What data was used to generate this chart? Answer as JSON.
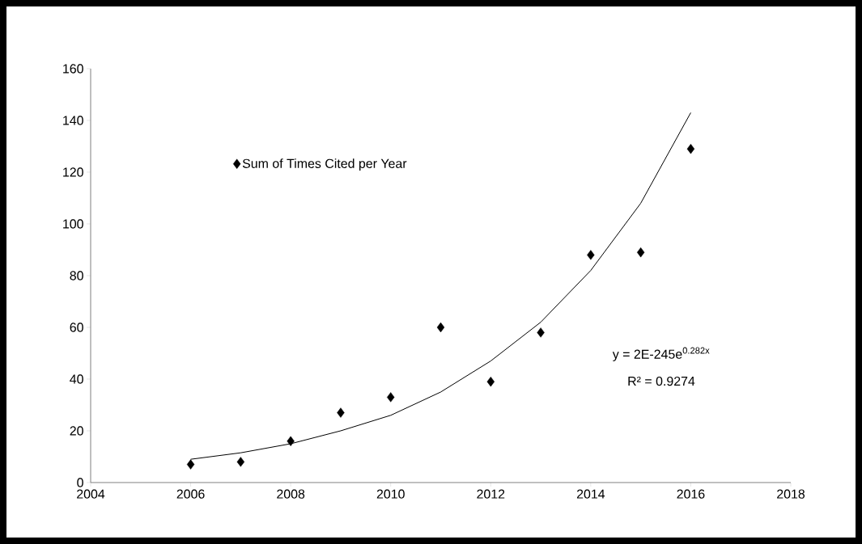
{
  "chart_data": {
    "type": "scatter",
    "x": [
      2006,
      2007,
      2008,
      2009,
      2010,
      2011,
      2012,
      2013,
      2014,
      2015,
      2016
    ],
    "series": [
      {
        "name": "Sum of Times Cited per Year",
        "color": "#000000",
        "values": [
          7,
          8,
          16,
          27,
          33,
          60,
          39,
          58,
          88,
          89,
          129
        ]
      },
      {
        "type": "line",
        "color": "#000000",
        "marker": "none",
        "x": [
          2006,
          2007,
          2008,
          2009,
          2010,
          2011,
          2012,
          2013,
          2014,
          2015,
          2016
        ],
        "values": [
          9,
          11.5,
          15,
          20,
          26,
          35,
          47,
          62,
          82,
          108,
          143
        ]
      }
    ],
    "xlim": [
      2004,
      2018
    ],
    "xticks": [
      2004,
      2006,
      2008,
      2010,
      2012,
      2014,
      2016,
      2018
    ],
    "ylim": [
      0,
      160
    ],
    "yticks": [
      0,
      20,
      40,
      60,
      80,
      100,
      120,
      140,
      160
    ],
    "marker": "diamond",
    "legend": "top left",
    "grid": false,
    "annotations": [
      "y = 2E-245e$^{0.282x}$",
      "R² = 0.9274"
    ]
  }
}
